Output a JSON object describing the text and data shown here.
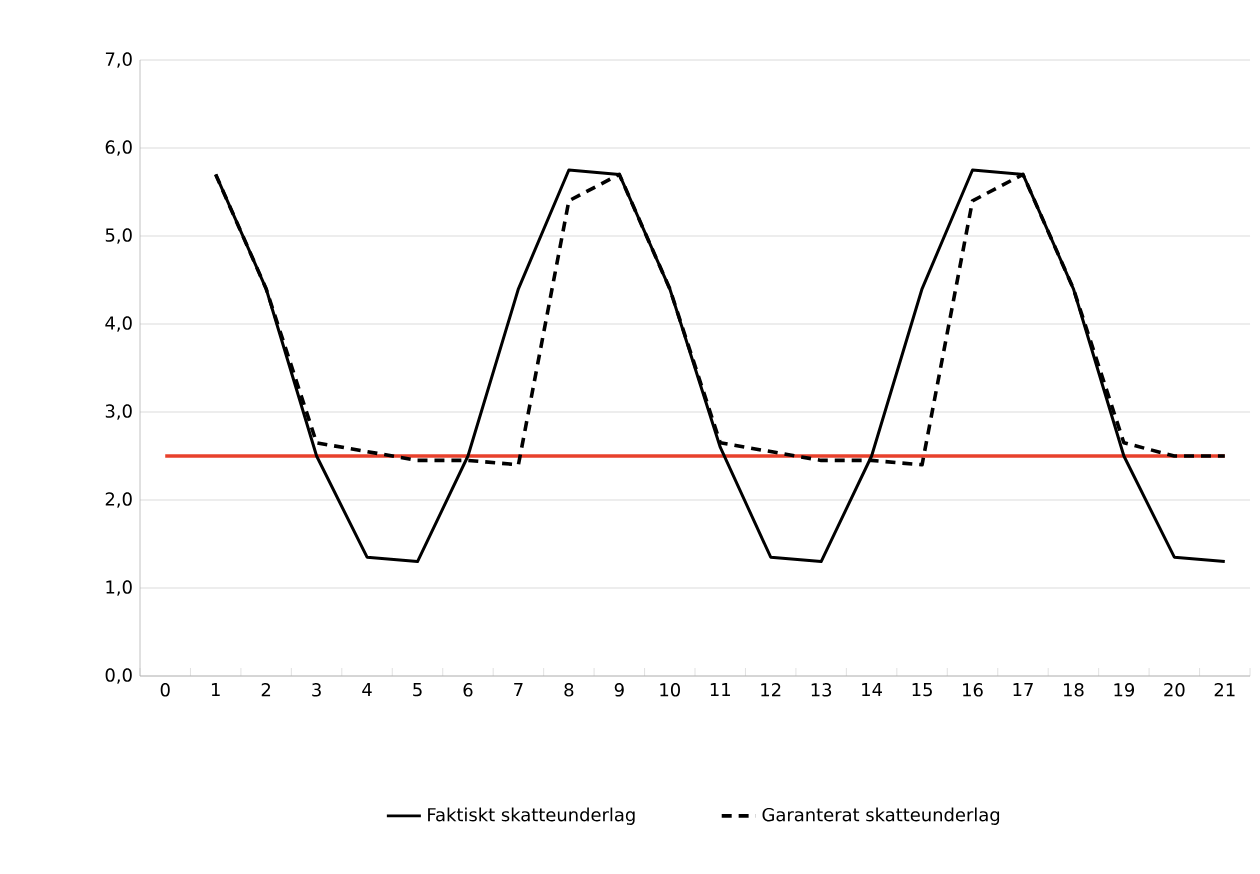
{
  "chart_data": {
    "type": "line",
    "categories": [
      "0",
      "1",
      "2",
      "3",
      "4",
      "5",
      "6",
      "7",
      "8",
      "9",
      "10",
      "11",
      "12",
      "13",
      "14",
      "15",
      "16",
      "17",
      "18",
      "19",
      "20",
      "21"
    ],
    "series": [
      {
        "name": "Faktiskt skatteunderlag",
        "color": "#000000",
        "line_style": "solid",
        "values": [
          null,
          5.7,
          4.4,
          2.5,
          1.35,
          1.3,
          2.5,
          4.4,
          5.75,
          5.7,
          4.4,
          2.6,
          1.35,
          1.3,
          2.5,
          4.4,
          5.75,
          5.7,
          4.4,
          2.5,
          1.35,
          1.3
        ]
      },
      {
        "name": "Garanterat skatteunderlag",
        "color": "#000000",
        "line_style": "dashed",
        "values": [
          null,
          5.7,
          4.4,
          2.65,
          2.55,
          2.45,
          2.45,
          2.4,
          5.4,
          5.7,
          4.4,
          2.65,
          2.55,
          2.45,
          2.45,
          2.4,
          5.4,
          5.7,
          4.4,
          2.65,
          2.5,
          2.5
        ]
      },
      {
        "color": "#e8412c",
        "line_style": "solid",
        "values": [
          2.5,
          2.5,
          2.5,
          2.5,
          2.5,
          2.5,
          2.5,
          2.5,
          2.5,
          2.5,
          2.5,
          2.5,
          2.5,
          2.5,
          2.5,
          2.5,
          2.5,
          2.5,
          2.5,
          2.5,
          2.5,
          2.5
        ]
      }
    ],
    "ylim": [
      0,
      7
    ],
    "yticks": [
      {
        "value": 0,
        "label": "0,0"
      },
      {
        "value": 1,
        "label": "1,0"
      },
      {
        "value": 2,
        "label": "2,0"
      },
      {
        "value": 3,
        "label": "3,0"
      },
      {
        "value": 4,
        "label": "4,0"
      },
      {
        "value": 5,
        "label": "5,0"
      },
      {
        "value": 6,
        "label": "6,0"
      },
      {
        "value": 7,
        "label": "7,0"
      }
    ],
    "grid": "y",
    "legend": "bottom",
    "marker": "none"
  }
}
